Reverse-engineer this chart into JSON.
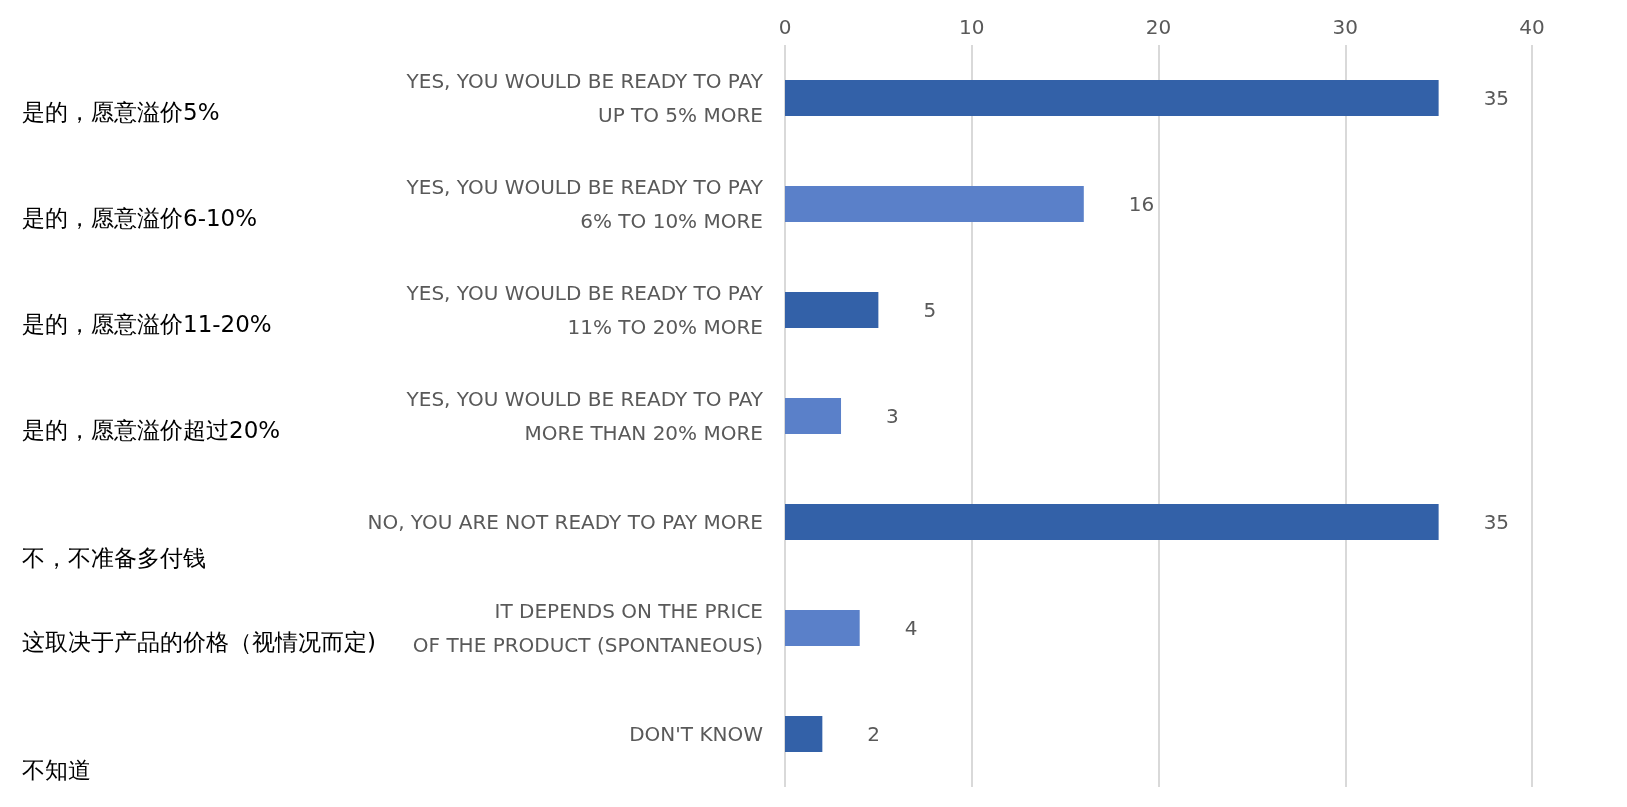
{
  "chart_data": {
    "type": "bar",
    "orientation": "horizontal",
    "categories": [
      "YES, YOU WOULD BE READY TO PAY\nUP TO 5% MORE",
      "YES, YOU WOULD BE READY TO PAY\n6% TO 10% MORE",
      "YES, YOU WOULD BE READY TO PAY\n11% TO 20% MORE",
      "YES, YOU WOULD BE READY TO PAY\nMORE THAN 20% MORE",
      "NO, YOU ARE NOT READY TO PAY MORE",
      "IT DEPENDS ON THE PRICE\nOF THE PRODUCT (SPONTANEOUS)",
      "DON'T KNOW"
    ],
    "values": [
      35,
      16,
      5,
      3,
      35,
      4,
      2
    ],
    "colors": [
      "#3361a8",
      "#5a80c9",
      "#3361a8",
      "#5a80c9",
      "#3361a8",
      "#5a80c9",
      "#3361a8"
    ],
    "xlim": [
      0,
      40
    ],
    "xticks": [
      0,
      10,
      20,
      30,
      40
    ],
    "grid": "x",
    "data_labels": true,
    "annotations": [
      "是的，愿意溢价5%",
      "是的，愿意溢价6-10%",
      "是的，愿意溢价11-20%",
      "是的，愿意溢价超过20%",
      "不，不准备多付钱",
      "这取决于产品的价格（视情况而定)",
      "不知道"
    ]
  }
}
